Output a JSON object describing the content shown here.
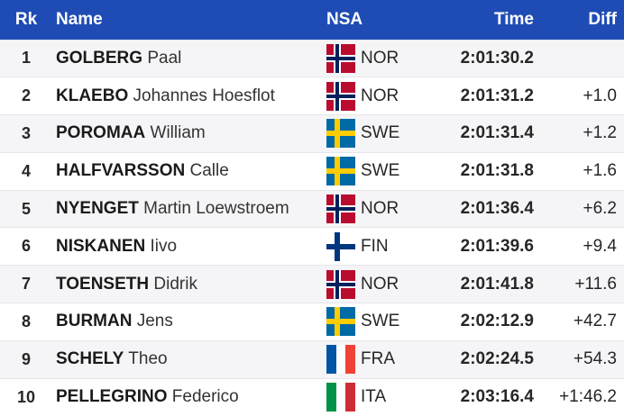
{
  "header": {
    "rank": "Rk",
    "name": "Name",
    "nsa": "NSA",
    "time": "Time",
    "diff": "Diff"
  },
  "rows": [
    {
      "rank": "1",
      "surname": "GOLBERG",
      "firstname": "Paal",
      "nsa": "NOR",
      "flag": "flag-norway-icon",
      "time": "2:01:30.2",
      "diff": ""
    },
    {
      "rank": "2",
      "surname": "KLAEBO",
      "firstname": "Johannes Hoesflot",
      "nsa": "NOR",
      "flag": "flag-norway-icon",
      "time": "2:01:31.2",
      "diff": "+1.0"
    },
    {
      "rank": "3",
      "surname": "POROMAA",
      "firstname": "William",
      "nsa": "SWE",
      "flag": "flag-sweden-icon",
      "time": "2:01:31.4",
      "diff": "+1.2"
    },
    {
      "rank": "4",
      "surname": "HALFVARSSON",
      "firstname": "Calle",
      "nsa": "SWE",
      "flag": "flag-sweden-icon",
      "time": "2:01:31.8",
      "diff": "+1.6"
    },
    {
      "rank": "5",
      "surname": "NYENGET",
      "firstname": "Martin Loewstroem",
      "nsa": "NOR",
      "flag": "flag-norway-icon",
      "time": "2:01:36.4",
      "diff": "+6.2"
    },
    {
      "rank": "6",
      "surname": "NISKANEN",
      "firstname": "Iivo",
      "nsa": "FIN",
      "flag": "flag-finland-icon",
      "time": "2:01:39.6",
      "diff": "+9.4"
    },
    {
      "rank": "7",
      "surname": "TOENSETH",
      "firstname": "Didrik",
      "nsa": "NOR",
      "flag": "flag-norway-icon",
      "time": "2:01:41.8",
      "diff": "+11.6"
    },
    {
      "rank": "8",
      "surname": "BURMAN",
      "firstname": "Jens",
      "nsa": "SWE",
      "flag": "flag-sweden-icon",
      "time": "2:02:12.9",
      "diff": "+42.7"
    },
    {
      "rank": "9",
      "surname": "SCHELY",
      "firstname": "Theo",
      "nsa": "FRA",
      "flag": "flag-france-icon",
      "time": "2:02:24.5",
      "diff": "+54.3"
    },
    {
      "rank": "10",
      "surname": "PELLEGRINO",
      "firstname": "Federico",
      "nsa": "ITA",
      "flag": "flag-italy-icon",
      "time": "2:03:16.4",
      "diff": "+1:46.2"
    }
  ],
  "colors": {
    "header_bg": "#1f4cb4",
    "norway_red": "#ba0c2f",
    "norway_blue": "#00205b",
    "sweden_blue": "#006aa7",
    "sweden_yellow": "#fecc00",
    "finland_blue": "#003580",
    "france_blue": "#0055a4",
    "france_red": "#ef4135",
    "italy_green": "#009246",
    "italy_red": "#ce2b37"
  }
}
